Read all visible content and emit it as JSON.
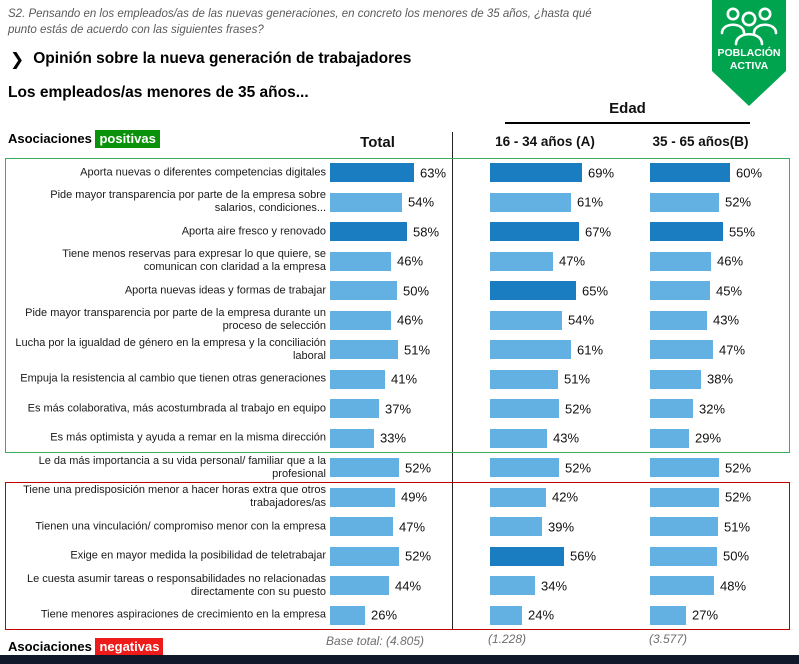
{
  "meta": {
    "question": "S2. Pensando en los empleados/as de las nuevas generaciones, en concreto los menores de 35 años, ¿hasta qué punto estás de acuerdo con las siguientes frases?",
    "title": "Opinión sobre la nueva generación de trabajadores",
    "subtitle": "Los empleados/as menores de 35 años...",
    "badge": {
      "line1": "POBLACIÓN",
      "line2": "ACTIVA",
      "color": "#00a44f"
    },
    "legend_positive": {
      "prefix": "Asociaciones",
      "highlight": "positivas"
    },
    "legend_negative": {
      "prefix": "Asociaciones",
      "highlight": "negativas"
    }
  },
  "chart_data": {
    "type": "bar",
    "orientation": "horizontal",
    "unit": "%",
    "group_header": "Edad",
    "columns": {
      "total": "Total",
      "a": "16 - 34 años (A)",
      "b": "35 - 65 años(B)"
    },
    "legend_note": "dark bars mark significantly higher values",
    "rows": [
      {
        "label": "Aporta nuevas o diferentes competencias digitales",
        "group": "positive",
        "total": 63,
        "a": 69,
        "b": 60,
        "dark": [
          "total",
          "a",
          "b"
        ]
      },
      {
        "label": "Pide mayor transparencia por parte de la empresa sobre salarios, condiciones...",
        "group": "positive",
        "total": 54,
        "a": 61,
        "b": 52,
        "dark": []
      },
      {
        "label": "Aporta aire fresco y renovado",
        "group": "positive",
        "total": 58,
        "a": 67,
        "b": 55,
        "dark": [
          "total",
          "a",
          "b"
        ]
      },
      {
        "label": "Tiene menos reservas para expresar lo que quiere, se comunican con claridad a la empresa",
        "group": "positive",
        "total": 46,
        "a": 47,
        "b": 46,
        "dark": []
      },
      {
        "label": "Aporta nuevas ideas y formas de trabajar",
        "group": "positive",
        "total": 50,
        "a": 65,
        "b": 45,
        "dark": [
          "a"
        ]
      },
      {
        "label": "Pide mayor transparencia por parte de la empresa durante un proceso de selección",
        "group": "positive",
        "total": 46,
        "a": 54,
        "b": 43,
        "dark": []
      },
      {
        "label": "Lucha por la igualdad de género en la empresa y la conciliación laboral",
        "group": "positive",
        "total": 51,
        "a": 61,
        "b": 47,
        "dark": []
      },
      {
        "label": "Empuja la resistencia al cambio que tienen otras generaciones",
        "group": "positive",
        "total": 41,
        "a": 51,
        "b": 38,
        "dark": []
      },
      {
        "label": "Es más colaborativa, más acostumbrada al trabajo en equipo",
        "group": "positive",
        "total": 37,
        "a": 52,
        "b": 32,
        "dark": []
      },
      {
        "label": "Es más optimista y ayuda a remar en la misma dirección",
        "group": "positive",
        "total": 33,
        "a": 43,
        "b": 29,
        "dark": []
      },
      {
        "label": "Le da más importancia a su vida personal/ familiar que a la profesional",
        "group": "neutral",
        "total": 52,
        "a": 52,
        "b": 52,
        "dark": []
      },
      {
        "label": "Tiene una predisposición menor a hacer horas extra que otros trabajadores/as",
        "group": "negative",
        "total": 49,
        "a": 42,
        "b": 52,
        "dark": []
      },
      {
        "label": "Tienen una vinculación/ compromiso menor con la empresa",
        "group": "negative",
        "total": 47,
        "a": 39,
        "b": 51,
        "dark": []
      },
      {
        "label": "Exige en mayor medida la posibilidad de teletrabajar",
        "group": "negative",
        "total": 52,
        "a": 56,
        "b": 50,
        "dark": [
          "a"
        ]
      },
      {
        "label": "Le cuesta asumir tareas o responsabilidades no relacionadas directamente con su puesto",
        "group": "negative",
        "total": 44,
        "a": 34,
        "b": 48,
        "dark": []
      },
      {
        "label": "Tiene menores aspiraciones de crecimiento en la empresa",
        "group": "negative",
        "total": 26,
        "a": 24,
        "b": 27,
        "dark": []
      }
    ],
    "bases": {
      "total": "Base total: (4.805)",
      "a": "(1.228)",
      "b": "(3.577)"
    },
    "colors": {
      "bar": "#63b1e2",
      "bar_emphasis": "#1a7dc2",
      "positive_box": "#3cab5c",
      "negative_box": "#c00000",
      "positive_highlight": "#0a930a",
      "negative_highlight": "#ee1b1b",
      "badge_green": "#00a44f"
    }
  }
}
